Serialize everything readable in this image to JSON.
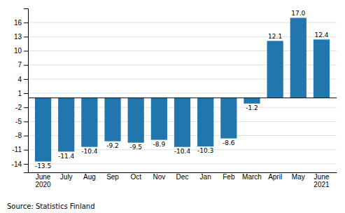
{
  "chart_data": {
    "type": "bar",
    "categories": [
      "June\n2020",
      "July",
      "Aug",
      "Sep",
      "Oct",
      "Nov",
      "Dec",
      "Jan",
      "Feb",
      "March",
      "April",
      "May",
      "June\n2021"
    ],
    "values": [
      -13.5,
      -11.4,
      -10.4,
      -9.2,
      -9.5,
      -8.9,
      -10.4,
      -10.3,
      -8.6,
      -1.2,
      12.1,
      17.0,
      12.4
    ],
    "value_labels": [
      "-13.5",
      "-11.4",
      "-10.4",
      "-9.2",
      "-9.5",
      "-8.9",
      "-10.4",
      "-10.3",
      "-8.6",
      "-1.2",
      "12.1",
      "17.0",
      "12.4"
    ],
    "color": "#2176AE",
    "ylim": [
      -15.8,
      19.0
    ],
    "yticks": [
      -14,
      -11,
      -8,
      -5,
      -2,
      1,
      4,
      7,
      10,
      13,
      16
    ],
    "grid": true,
    "data_labels": true,
    "annotations": [
      "Source: Statistics Finland"
    ]
  }
}
